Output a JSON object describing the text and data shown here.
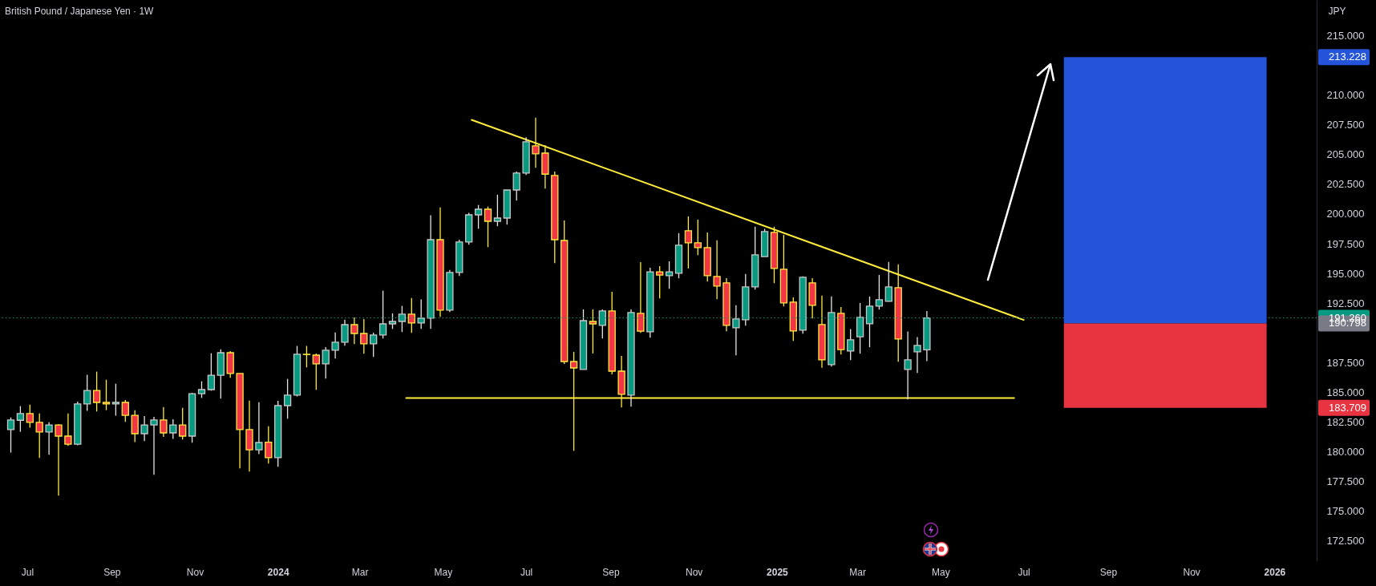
{
  "chart_data": {
    "type": "candlestick",
    "title": "British Pound / Japanese Yen · 1W",
    "ylabel": "JPY",
    "x": [
      "2023-06-19",
      "2023-06-26",
      "2023-07-03",
      "2023-07-10",
      "2023-07-17",
      "2023-07-24",
      "2023-07-31",
      "2023-08-07",
      "2023-08-14",
      "2023-08-21",
      "2023-08-28",
      "2023-09-04",
      "2023-09-11",
      "2023-09-18",
      "2023-09-25",
      "2023-10-02",
      "2023-10-09",
      "2023-10-16",
      "2023-10-23",
      "2023-10-30",
      "2023-11-06",
      "2023-11-13",
      "2023-11-20",
      "2023-11-27",
      "2023-12-04",
      "2023-12-11",
      "2023-12-18",
      "2023-12-25",
      "2024-01-01",
      "2024-01-08",
      "2024-01-15",
      "2024-01-22",
      "2024-01-29",
      "2024-02-05",
      "2024-02-12",
      "2024-02-19",
      "2024-02-26",
      "2024-03-04",
      "2024-03-11",
      "2024-03-18",
      "2024-03-25",
      "2024-04-01",
      "2024-04-08",
      "2024-04-15",
      "2024-04-22",
      "2024-04-29",
      "2024-05-06",
      "2024-05-13",
      "2024-05-20",
      "2024-05-27",
      "2024-06-03",
      "2024-06-10",
      "2024-06-17",
      "2024-06-24",
      "2024-07-01",
      "2024-07-08",
      "2024-07-15",
      "2024-07-22",
      "2024-07-29",
      "2024-08-05",
      "2024-08-12",
      "2024-08-19",
      "2024-08-26",
      "2024-09-02",
      "2024-09-09",
      "2024-09-16",
      "2024-09-23",
      "2024-09-30",
      "2024-10-07",
      "2024-10-14",
      "2024-10-21",
      "2024-10-28",
      "2024-11-04",
      "2024-11-11",
      "2024-11-18",
      "2024-11-25",
      "2024-12-02",
      "2024-12-09",
      "2024-12-16",
      "2024-12-23",
      "2024-12-30",
      "2025-01-06",
      "2025-01-13",
      "2025-01-20",
      "2025-01-27",
      "2025-02-03",
      "2025-02-10",
      "2025-02-17",
      "2025-02-24",
      "2025-03-03",
      "2025-03-10",
      "2025-03-17",
      "2025-03-24",
      "2025-03-31",
      "2025-04-07",
      "2025-04-14",
      "2025-04-21"
    ],
    "ohlc": [
      [
        181.86,
        182.89,
        179.93,
        182.67
      ],
      [
        182.65,
        183.84,
        181.68,
        183.21
      ],
      [
        183.21,
        183.97,
        182.02,
        182.47
      ],
      [
        182.47,
        183.23,
        179.48,
        181.66
      ],
      [
        181.66,
        182.49,
        179.75,
        182.26
      ],
      [
        182.26,
        182.33,
        176.31,
        181.32
      ],
      [
        181.32,
        183.23,
        180.49,
        180.64
      ],
      [
        180.64,
        184.22,
        180.55,
        184.02
      ],
      [
        184.02,
        186.47,
        183.45,
        185.16
      ],
      [
        185.16,
        186.74,
        183.39,
        184.15
      ],
      [
        184.15,
        186.06,
        183.5,
        184.02
      ],
      [
        184.02,
        185.72,
        183.03,
        184.15
      ],
      [
        184.15,
        184.35,
        182.51,
        183.07
      ],
      [
        183.07,
        183.5,
        180.82,
        181.52
      ],
      [
        181.52,
        183.0,
        180.89,
        182.26
      ],
      [
        182.26,
        182.94,
        178.06,
        182.67
      ],
      [
        182.67,
        183.77,
        181.25,
        181.59
      ],
      [
        181.59,
        182.74,
        181.09,
        182.26
      ],
      [
        182.26,
        183.7,
        181.03,
        181.32
      ],
      [
        181.32,
        184.96,
        180.76,
        184.89
      ],
      [
        184.89,
        185.93,
        184.53,
        185.23
      ],
      [
        185.23,
        188.29,
        185.14,
        186.44
      ],
      [
        186.44,
        188.62,
        184.47,
        188.33
      ],
      [
        188.33,
        188.47,
        186.22,
        186.58
      ],
      [
        186.58,
        186.58,
        178.6,
        181.86
      ],
      [
        181.86,
        184.31,
        178.33,
        180.17
      ],
      [
        180.17,
        184.17,
        179.81,
        180.78
      ],
      [
        180.8,
        182.15,
        179.01,
        179.5
      ],
      [
        179.5,
        184.29,
        178.74,
        183.88
      ],
      [
        183.88,
        186.13,
        182.78,
        184.76
      ],
      [
        184.76,
        188.9,
        184.65,
        188.2
      ],
      [
        188.2,
        188.9,
        187.1,
        188.18
      ],
      [
        188.13,
        188.27,
        185.21,
        187.39
      ],
      [
        187.39,
        188.81,
        186.15,
        188.54
      ],
      [
        188.54,
        190.04,
        187.84,
        189.21
      ],
      [
        189.21,
        191.12,
        188.92,
        190.69
      ],
      [
        190.69,
        191.3,
        189.05,
        189.95
      ],
      [
        189.95,
        191.17,
        188.24,
        189.08
      ],
      [
        189.08,
        190.02,
        187.97,
        189.82
      ],
      [
        189.82,
        193.55,
        189.53,
        190.76
      ],
      [
        190.76,
        191.64,
        190.33,
        190.96
      ],
      [
        190.96,
        192.27,
        190.07,
        191.57
      ],
      [
        191.57,
        192.94,
        190.0,
        190.83
      ],
      [
        190.83,
        192.81,
        190.33,
        191.23
      ],
      [
        191.24,
        199.9,
        190.33,
        197.84
      ],
      [
        197.84,
        200.56,
        191.35,
        191.91
      ],
      [
        191.91,
        195.3,
        191.75,
        195.08
      ],
      [
        195.08,
        197.84,
        194.79,
        197.64
      ],
      [
        197.64,
        200.09,
        197.41,
        199.93
      ],
      [
        199.93,
        200.76,
        198.76,
        200.4
      ],
      [
        200.4,
        200.63,
        197.21,
        199.39
      ],
      [
        199.39,
        201.62,
        198.97,
        199.66
      ],
      [
        199.66,
        202.02,
        199.1,
        202.02
      ],
      [
        202.02,
        203.57,
        201.12,
        203.44
      ],
      [
        203.44,
        206.45,
        203.28,
        206.07
      ],
      [
        205.73,
        208.11,
        203.89,
        205.06
      ],
      [
        205.12,
        205.8,
        202.13,
        203.35
      ],
      [
        203.24,
        203.57,
        195.86,
        197.84
      ],
      [
        197.77,
        199.46,
        187.39,
        187.59
      ],
      [
        187.59,
        188.4,
        180.08,
        187.05
      ],
      [
        186.92,
        191.98,
        186.92,
        191.03
      ],
      [
        190.96,
        191.98,
        188.27,
        190.76
      ],
      [
        190.63,
        191.98,
        189.53,
        191.84
      ],
      [
        191.84,
        193.46,
        186.51,
        186.78
      ],
      [
        186.78,
        188.06,
        183.73,
        184.83
      ],
      [
        184.76,
        191.98,
        183.79,
        191.71
      ],
      [
        191.64,
        195.95,
        190.0,
        190.15
      ],
      [
        190.09,
        195.48,
        189.59,
        195.14
      ],
      [
        195.14,
        195.62,
        192.9,
        194.87
      ],
      [
        194.81,
        196.02,
        193.71,
        195.14
      ],
      [
        195.02,
        198.39,
        194.59,
        197.38
      ],
      [
        198.59,
        199.8,
        195.42,
        197.58
      ],
      [
        197.58,
        199.53,
        196.54,
        197.17
      ],
      [
        197.17,
        198.45,
        194.32,
        194.81
      ],
      [
        194.75,
        197.78,
        192.84,
        193.94
      ],
      [
        194.21,
        194.61,
        190.14,
        190.63
      ],
      [
        190.43,
        192.32,
        188.12,
        191.17
      ],
      [
        191.1,
        194.95,
        190.61,
        193.87
      ],
      [
        193.87,
        198.93,
        193.64,
        196.57
      ],
      [
        196.41,
        198.75,
        196.41,
        198.52
      ],
      [
        198.45,
        198.93,
        194.18,
        195.42
      ],
      [
        195.35,
        198.25,
        192.23,
        192.52
      ],
      [
        192.59,
        192.99,
        189.33,
        190.16
      ],
      [
        190.23,
        194.75,
        189.94,
        194.68
      ],
      [
        194.21,
        194.61,
        191.22,
        192.32
      ],
      [
        190.7,
        193.13,
        187.06,
        187.73
      ],
      [
        187.33,
        193.06,
        187.17,
        191.71
      ],
      [
        191.64,
        192.18,
        188.18,
        188.59
      ],
      [
        188.47,
        190.32,
        187.71,
        189.42
      ],
      [
        189.67,
        192.52,
        188.25,
        191.31
      ],
      [
        190.77,
        193.06,
        188.79,
        192.25
      ],
      [
        192.25,
        194.88,
        191.96,
        192.79
      ],
      [
        192.66,
        195.96,
        192.63,
        193.87
      ],
      [
        193.8,
        195.76,
        187.58,
        189.49
      ],
      [
        186.92,
        190.12,
        184.41,
        187.73
      ],
      [
        188.41,
        189.64,
        186.63,
        188.95
      ],
      [
        188.58,
        191.83,
        187.62,
        191.26
      ]
    ],
    "series": [
      {
        "type": "line",
        "color": "#ffeb3b",
        "x": [
          "2024-05-22",
          "2025-07-01"
        ],
        "values": [
          207.92,
          191.09
        ]
      },
      {
        "type": "line",
        "color": "#ffeb3b",
        "x": [
          "2024-04-04",
          "2025-06-24"
        ],
        "values": [
          184.52,
          184.52
        ]
      }
    ],
    "bands": [
      {
        "axis": "y",
        "from": 190.8,
        "to": 213.2,
        "color": "#2354d9"
      },
      {
        "axis": "y",
        "from": 183.7,
        "to": 190.8,
        "color": "#e83340"
      }
    ],
    "ref_lines": [
      {
        "axis": "y",
        "value": 191.26,
        "label": "191.260",
        "color": "#089981",
        "line_style": "dotted"
      }
    ],
    "annotations": [
      "213.228",
      "190.798",
      "183.709"
    ],
    "xlim": [
      "2023-06-14",
      "2026-01-29"
    ],
    "xticks": [
      {
        "value": "2023-07-01",
        "label": "Jul"
      },
      {
        "value": "2023-09-01",
        "label": "Sep"
      },
      {
        "value": "2023-11-01",
        "label": "Nov"
      },
      {
        "value": "2024-01-01",
        "label": "2024"
      },
      {
        "value": "2024-03-01",
        "label": "Mar"
      },
      {
        "value": "2024-05-01",
        "label": "May"
      },
      {
        "value": "2024-07-01",
        "label": "Jul"
      },
      {
        "value": "2024-09-01",
        "label": "Sep"
      },
      {
        "value": "2024-11-01",
        "label": "Nov"
      },
      {
        "value": "2025-01-01",
        "label": "2025"
      },
      {
        "value": "2025-03-01",
        "label": "Mar"
      },
      {
        "value": "2025-05-01",
        "label": "May"
      },
      {
        "value": "2025-07-01",
        "label": "Jul"
      },
      {
        "value": "2025-09-01",
        "label": "Sep"
      },
      {
        "value": "2025-11-01",
        "label": "Nov"
      },
      {
        "value": "2026-01-01",
        "label": "2026"
      }
    ],
    "ylim": [
      170.8,
      218.0
    ],
    "yticks": [
      {
        "value": 172.5,
        "label": "172.500"
      },
      {
        "value": 175,
        "label": "175.000"
      },
      {
        "value": 177.5,
        "label": "177.500"
      },
      {
        "value": 180,
        "label": "180.000"
      },
      {
        "value": 182.5,
        "label": "182.500"
      },
      {
        "value": 185,
        "label": "185.000"
      },
      {
        "value": 187.5,
        "label": "187.500"
      },
      {
        "value": 192.5,
        "label": "192.500"
      },
      {
        "value": 195,
        "label": "195.000"
      },
      {
        "value": 197.5,
        "label": "197.500"
      },
      {
        "value": 200,
        "label": "200.000"
      },
      {
        "value": 202.5,
        "label": "202.500"
      },
      {
        "value": 205,
        "label": "205.000"
      },
      {
        "value": 207.5,
        "label": "207.500"
      },
      {
        "value": 210,
        "label": "210.000"
      },
      {
        "value": 215,
        "label": "215.000"
      }
    ],
    "grid": false
  }
}
